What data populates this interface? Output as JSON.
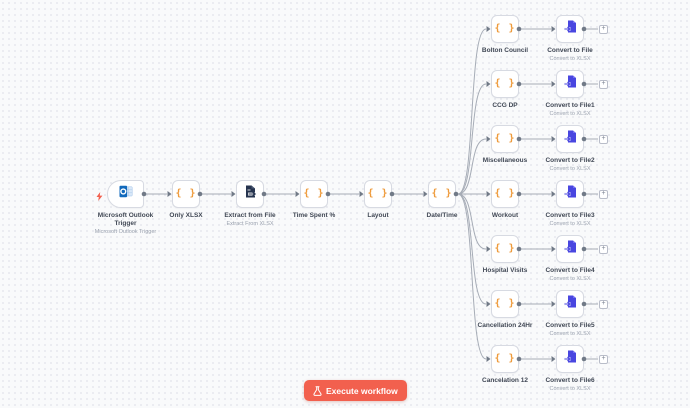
{
  "workflow": {
    "execute_button_label": "Execute workflow"
  },
  "colors": {
    "accent": "#f2604e",
    "code_icon_color": "#ee9a3a",
    "extract_icon_color": "#25334e",
    "convert_icon_color": "#4946e0",
    "outlook_blue": "#1169bc",
    "edge_color": "#a6acb6",
    "connector_dot_color": "#717a87"
  },
  "icons": {
    "trigger_indicator": "lightning-bolt-icon",
    "code_node": "curly-braces-icon",
    "extract_node": "file-export-icon",
    "convert_node": "file-import-icon",
    "trigger_node": "outlook-logo-icon",
    "execute_button": "flask-icon",
    "endpoint": "plus-icon"
  },
  "nodes": {
    "main": [
      {
        "label": "Microsoft Outlook Trigger",
        "subtitle": "Microsoft Outlook Trigger"
      },
      {
        "label": "Only XLSX"
      },
      {
        "label": "Extract from File",
        "subtitle": "Extract From XLSX"
      },
      {
        "label": "Time Spent %"
      },
      {
        "label": "Layout"
      },
      {
        "label": "Date/Time"
      }
    ],
    "branches": [
      {
        "code_label": "Bolton Council",
        "convert_label": "Convert to File",
        "convert_subtitle": "Convert to XLSX"
      },
      {
        "code_label": "CCG DP",
        "convert_label": "Convert to File1",
        "convert_subtitle": "Convert to XLSX"
      },
      {
        "code_label": "Miscellaneous",
        "convert_label": "Convert to File2",
        "convert_subtitle": "Convert to XLSX"
      },
      {
        "code_label": "Workout",
        "convert_label": "Convert to File3",
        "convert_subtitle": "Convert to XLSX"
      },
      {
        "code_label": "Hospital Visits",
        "convert_label": "Convert to File4",
        "convert_subtitle": "Convert to XLSX"
      },
      {
        "code_label": "Cancellation 24Hr",
        "convert_label": "Convert to File5",
        "convert_subtitle": "Convert to XLSX"
      },
      {
        "code_label": "Cancelation 12",
        "convert_label": "Convert to File6",
        "convert_subtitle": "Convert to XLSX"
      }
    ]
  }
}
